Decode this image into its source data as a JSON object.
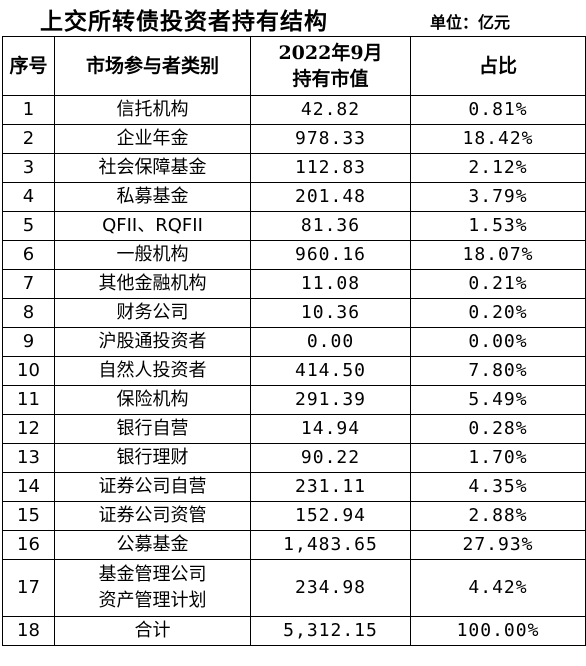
{
  "title": "上交所转债投资者持有结构",
  "unit": "单位：亿元",
  "headers": {
    "index": "序号",
    "category": "市场参与者类别",
    "value_line1": "2022年9月",
    "value_line2": "持有市值",
    "share": "占比"
  },
  "rows": [
    {
      "index": "1",
      "category": "信托机构",
      "value": "42.82",
      "share": "0.81%"
    },
    {
      "index": "2",
      "category": "企业年金",
      "value": "978.33",
      "share": "18.42%"
    },
    {
      "index": "3",
      "category": "社会保障基金",
      "value": "112.83",
      "share": "2.12%"
    },
    {
      "index": "4",
      "category": "私募基金",
      "value": "201.48",
      "share": "3.79%"
    },
    {
      "index": "5",
      "category": "QFII、RQFII",
      "value": "81.36",
      "share": "1.53%"
    },
    {
      "index": "6",
      "category": "一般机构",
      "value": "960.16",
      "share": "18.07%"
    },
    {
      "index": "7",
      "category": "其他金融机构",
      "value": "11.08",
      "share": "0.21%"
    },
    {
      "index": "8",
      "category": "财务公司",
      "value": "10.36",
      "share": "0.20%"
    },
    {
      "index": "9",
      "category": "沪股通投资者",
      "value": "0.00",
      "share": "0.00%"
    },
    {
      "index": "10",
      "category": "自然人投资者",
      "value": "414.50",
      "share": "7.80%"
    },
    {
      "index": "11",
      "category": "保险机构",
      "value": "291.39",
      "share": "5.49%"
    },
    {
      "index": "12",
      "category": "银行自营",
      "value": "14.94",
      "share": "0.28%"
    },
    {
      "index": "13",
      "category": "银行理财",
      "value": "90.22",
      "share": "1.70%"
    },
    {
      "index": "14",
      "category": "证券公司自营",
      "value": "231.11",
      "share": "4.35%"
    },
    {
      "index": "15",
      "category": "证券公司资管",
      "value": "152.94",
      "share": "2.88%"
    },
    {
      "index": "16",
      "category": "公募基金",
      "value": "1,483.65",
      "share": "27.93%"
    },
    {
      "index": "17",
      "category_line1": "基金管理公司",
      "category_line2": "资产管理计划",
      "value": "234.98",
      "share": "4.42%"
    },
    {
      "index": "18",
      "category": "合计",
      "value": "5,312.15",
      "share": "100.00%"
    }
  ]
}
